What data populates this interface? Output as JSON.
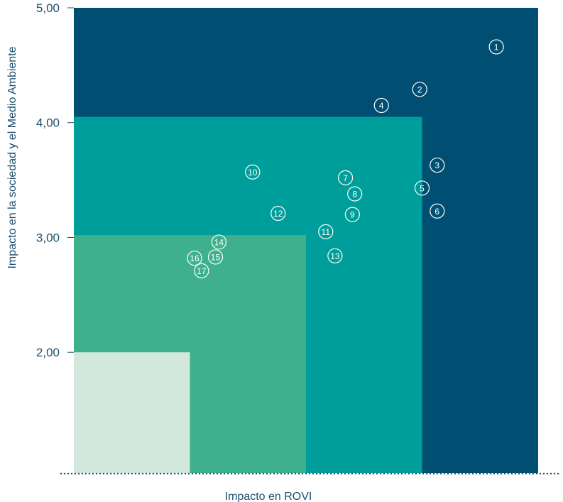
{
  "chart_data": {
    "type": "scatter",
    "title": "",
    "xlabel": "Impacto en ROVI",
    "ylabel": "Impacto en la sociedad y el Medio Ambiente",
    "yticks": [
      "5,00",
      "4,00",
      "3,00",
      "2,00"
    ],
    "ytick_values": [
      5,
      4,
      3,
      2
    ],
    "xlim": [
      1,
      5
    ],
    "ylim": [
      0.95,
      5
    ],
    "grid": false,
    "legend": "none",
    "zones": [
      {
        "x_max": 5.0,
        "y_max": 5.0,
        "color": "#004f72"
      },
      {
        "x_max": 4.0,
        "y_max": 4.05,
        "color": "#009e9a"
      },
      {
        "x_max": 3.0,
        "y_max": 3.02,
        "color": "#3fb08c"
      },
      {
        "x_max": 2.0,
        "y_max": 2.0,
        "color": "#d2e8dc"
      }
    ],
    "points": [
      {
        "label": "1",
        "x": 4.64,
        "y": 4.66
      },
      {
        "label": "2",
        "x": 3.98,
        "y": 4.29
      },
      {
        "label": "3",
        "x": 4.13,
        "y": 3.63
      },
      {
        "label": "4",
        "x": 3.65,
        "y": 4.15
      },
      {
        "label": "5",
        "x": 4.0,
        "y": 3.43
      },
      {
        "label": "6",
        "x": 4.13,
        "y": 3.23
      },
      {
        "label": "7",
        "x": 3.34,
        "y": 3.52
      },
      {
        "label": "8",
        "x": 3.42,
        "y": 3.38
      },
      {
        "label": "9",
        "x": 3.4,
        "y": 3.2
      },
      {
        "label": "10",
        "x": 2.54,
        "y": 3.57
      },
      {
        "label": "11",
        "x": 3.17,
        "y": 3.05
      },
      {
        "label": "12",
        "x": 2.76,
        "y": 3.21
      },
      {
        "label": "13",
        "x": 3.25,
        "y": 2.84
      },
      {
        "label": "14",
        "x": 2.25,
        "y": 2.96
      },
      {
        "label": "15",
        "x": 2.22,
        "y": 2.83
      },
      {
        "label": "16",
        "x": 2.04,
        "y": 2.82
      },
      {
        "label": "17",
        "x": 2.1,
        "y": 2.71
      }
    ],
    "colors": {
      "axis_text": "#1f4f6e",
      "axis_dots": "#1f4f6e",
      "marker_stroke": "#ffffff",
      "marker_fill": "#009e9a"
    }
  }
}
